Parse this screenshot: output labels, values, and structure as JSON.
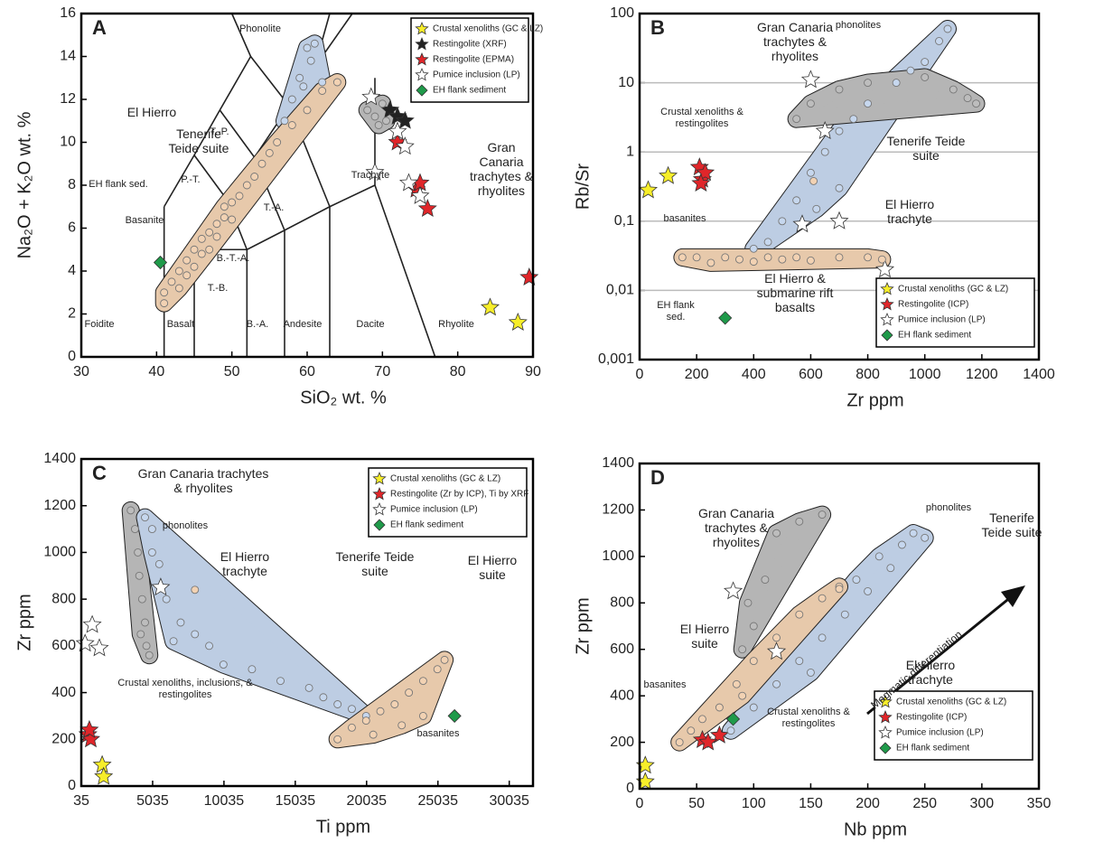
{
  "chart_data": [
    {
      "type": "scatter",
      "title": "A",
      "xlabel": "SiO₂ wt. %",
      "ylabel": "Na₂O + K₂O wt. %",
      "xlim": [
        30,
        90
      ],
      "xticks": [
        30,
        40,
        50,
        60,
        70,
        80,
        90
      ],
      "ylim": [
        0,
        16
      ],
      "yticks": [
        0,
        2,
        4,
        6,
        8,
        10,
        12,
        14,
        16
      ],
      "legend": "upper right",
      "series": [
        {
          "name": "Crustal xenoliths (GC & LZ)",
          "color": "#f7ee2a",
          "marker": "star",
          "x": [
            84.3,
            88
          ],
          "y": [
            2.3,
            1.6
          ]
        },
        {
          "name": "Restingolite (XRF)",
          "color": "#222222",
          "marker": "star",
          "x": [
            71,
            72,
            73
          ],
          "y": [
            11.5,
            11.2,
            11
          ]
        },
        {
          "name": "Restingolite (EPMA)",
          "color": "#e0262a",
          "marker": "star",
          "x": [
            72,
            74.5,
            75,
            76,
            89.5
          ],
          "y": [
            10,
            7.8,
            8.1,
            6.9,
            3.7
          ]
        },
        {
          "name": "Pumice inclusion (LP)",
          "color": "#ffffff",
          "marker": "star",
          "x": [
            68.5,
            69,
            72,
            73,
            73.5,
            75
          ],
          "y": [
            12.1,
            8.6,
            10.5,
            9.8,
            8.1,
            7.5
          ]
        },
        {
          "name": "EH flank sediment",
          "color": "#1f9a4a",
          "marker": "diamond",
          "x": [
            40.5
          ],
          "y": [
            4.4
          ]
        },
        {
          "name": "Tenerife Teide suite",
          "color": "#c6d7ee",
          "marker": "circle",
          "x": [
            57,
            58,
            59,
            59.5,
            60,
            60.5,
            61,
            62
          ],
          "y": [
            11,
            12,
            13,
            12.6,
            14.4,
            13.8,
            14.6,
            12.8
          ]
        },
        {
          "name": "El Hierro",
          "color": "#f2d2b3",
          "marker": "circle",
          "x": [
            41,
            41,
            42,
            43,
            43,
            44,
            44,
            45,
            45,
            46,
            46,
            47,
            47,
            48,
            48,
            49,
            49,
            50,
            50,
            51,
            52,
            53,
            54,
            55,
            56,
            58,
            60,
            62,
            64
          ],
          "y": [
            3,
            2.5,
            3.5,
            4,
            3.2,
            4.5,
            3.8,
            5,
            4.2,
            5.5,
            4.8,
            5.8,
            5,
            6.2,
            5.6,
            6.5,
            7,
            7.2,
            6.4,
            7.5,
            8,
            8.4,
            9,
            9.5,
            10,
            10.8,
            11.5,
            12.4,
            12.8
          ]
        },
        {
          "name": "Gran Canaria trachytes & rhyolites",
          "color": "#bdbdbd",
          "marker": "circle",
          "x": [
            68,
            69,
            70,
            69.5,
            70.5
          ],
          "y": [
            11.5,
            11.2,
            11.8,
            10.8,
            11
          ]
        }
      ],
      "annotations": [
        "Phonolite",
        "T.-P.",
        "P.-T.",
        "Basanite",
        "T.-A.",
        "B.-T.-A.",
        "T.-B.",
        "Trachyte",
        "Foidite",
        "Basalt",
        "B.-A.",
        "Andesite",
        "Dacite",
        "Rhyolite",
        "EH flank sed."
      ]
    },
    {
      "type": "scatter",
      "title": "B",
      "xlabel": "Zr ppm",
      "ylabel": "Rb/Sr",
      "xlim": [
        0,
        1400
      ],
      "xticks": [
        0,
        200,
        400,
        600,
        800,
        1000,
        1200,
        1400
      ],
      "ylim": [
        0.001,
        100
      ],
      "log_y": true,
      "grid": true,
      "yticks": [
        {
          "value": 0.001,
          "label": "0,001"
        },
        {
          "value": 0.01,
          "label": "0,01"
        },
        {
          "value": 0.1,
          "label": "0,1"
        },
        1,
        10,
        100
      ],
      "legend": "lower right",
      "series": [
        {
          "name": "Crustal xenoliths (GC & LZ)",
          "color": "#f7ee2a",
          "marker": "star",
          "x": [
            30,
            100
          ],
          "y": [
            0.28,
            0.45
          ]
        },
        {
          "name": "Restingolite (ICP)",
          "color": "#e0262a",
          "marker": "star",
          "x": [
            210,
            220,
            230,
            215
          ],
          "y": [
            0.6,
            0.4,
            0.5,
            0.35
          ]
        },
        {
          "name": "Pumice inclusion (LP)",
          "color": "#ffffff",
          "marker": "star",
          "x": [
            600,
            650,
            570,
            700,
            860
          ],
          "y": [
            11,
            2,
            0.09,
            0.1,
            0.02
          ]
        },
        {
          "name": "EH flank sediment",
          "color": "#1f9a4a",
          "marker": "diamond",
          "x": [
            300
          ],
          "y": [
            0.004
          ]
        },
        {
          "name": "Tenerife Teide suite",
          "color": "#c6d7ee",
          "marker": "circle",
          "x": [
            400,
            450,
            500,
            550,
            600,
            650,
            700,
            750,
            800,
            900,
            1000,
            1050,
            1080,
            950,
            700,
            620
          ],
          "y": [
            0.04,
            0.05,
            0.1,
            0.2,
            0.5,
            1,
            2,
            3,
            5,
            10,
            20,
            40,
            60,
            15,
            0.3,
            0.15
          ]
        },
        {
          "name": "Gran Canaria trachytes & rhyolites",
          "color": "#bdbdbd",
          "marker": "circle",
          "x": [
            550,
            600,
            700,
            800,
            1100,
            1150,
            1180,
            1000
          ],
          "y": [
            3,
            5,
            8,
            10,
            8,
            6,
            5,
            12
          ]
        },
        {
          "name": "El Hierro & submarine rift basalts",
          "color": "#f2d2b3",
          "marker": "circle",
          "x": [
            150,
            200,
            250,
            300,
            350,
            400,
            450,
            500,
            550,
            600,
            700,
            800,
            850
          ],
          "y": [
            0.03,
            0.03,
            0.025,
            0.03,
            0.028,
            0.026,
            0.03,
            0.028,
            0.03,
            0.027,
            0.03,
            0.03,
            0.028
          ]
        },
        {
          "name": "El Hierro trachyte",
          "color": "#f2d2b3",
          "marker": "circle",
          "x": [
            610
          ],
          "y": [
            0.38
          ]
        }
      ],
      "annotations": [
        "phonolites",
        "Crustal xenoliths & restingolites",
        "basanites",
        "EH flank sed."
      ]
    },
    {
      "type": "scatter",
      "title": "C",
      "xlabel": "Ti ppm",
      "ylabel": "Zr ppm",
      "xlim": [
        35,
        31700
      ],
      "xticks": [
        35,
        5035,
        10035,
        15035,
        20035,
        25035,
        30035
      ],
      "ylim": [
        0,
        1400
      ],
      "yticks": [
        0,
        200,
        400,
        600,
        800,
        1000,
        1200,
        1400
      ],
      "legend": "upper right",
      "series": [
        {
          "name": "Crustal xenoliths (GC & LZ)",
          "color": "#f7ee2a",
          "marker": "star",
          "x": [
            1500,
            1600
          ],
          "y": [
            90,
            40
          ]
        },
        {
          "name": "Restingolite (Zr by ICP), Ti by XRF",
          "color": "#e0262a",
          "marker": "star",
          "x": [
            500,
            700,
            600
          ],
          "y": [
            220,
            200,
            240
          ]
        },
        {
          "name": "Pumice inclusion (LP)",
          "color": "#ffffff",
          "marker": "star",
          "x": [
            300,
            800,
            1300,
            5600
          ],
          "y": [
            610,
            690,
            590,
            850
          ]
        },
        {
          "name": "EH flank sediment",
          "color": "#1f9a4a",
          "marker": "diamond",
          "x": [
            26200
          ],
          "y": [
            300
          ]
        },
        {
          "name": "Gran Canaria trachytes & rhyolites",
          "color": "#bdbdbd",
          "marker": "circle",
          "x": [
            3500,
            3800,
            4000,
            4100,
            4300,
            4500,
            4600,
            4800,
            4200
          ],
          "y": [
            1180,
            1100,
            1000,
            900,
            800,
            700,
            600,
            560,
            650
          ]
        },
        {
          "name": "Tenerife Teide suite",
          "color": "#c6d7ee",
          "marker": "circle",
          "x": [
            4500,
            5000,
            5000,
            5500,
            6000,
            7000,
            8000,
            9000,
            10000,
            12000,
            14000,
            16000,
            17000,
            18000,
            19000,
            20000,
            6500
          ],
          "y": [
            1150,
            1100,
            1000,
            950,
            800,
            700,
            650,
            600,
            520,
            500,
            450,
            420,
            380,
            350,
            330,
            300,
            620
          ]
        },
        {
          "name": "El Hierro suite",
          "color": "#f2d2b3",
          "marker": "circle",
          "x": [
            18000,
            19000,
            20000,
            21000,
            22000,
            23000,
            24000,
            25000,
            25500,
            20500,
            22500,
            24000
          ],
          "y": [
            200,
            250,
            280,
            320,
            350,
            400,
            450,
            500,
            540,
            220,
            260,
            300
          ]
        },
        {
          "name": "El Hierro trachyte",
          "color": "#f2d2b3",
          "marker": "circle",
          "x": [
            8000
          ],
          "y": [
            840
          ]
        }
      ],
      "annotations": [
        "phonolites",
        "Crustal xenoliths, inclusions, & restingolites",
        "basanites"
      ]
    },
    {
      "type": "scatter",
      "title": "D",
      "xlabel": "Nb ppm",
      "ylabel": "Zr ppm",
      "xlim": [
        0,
        350
      ],
      "xticks": [
        0,
        50,
        100,
        150,
        200,
        250,
        300,
        350
      ],
      "ylim": [
        0,
        1400
      ],
      "yticks": [
        0,
        200,
        400,
        600,
        800,
        1000,
        1200,
        1400
      ],
      "legend": "lower right",
      "series": [
        {
          "name": "Crustal xenoliths (GC & LZ)",
          "color": "#f7ee2a",
          "marker": "star",
          "x": [
            5,
            5
          ],
          "y": [
            100,
            30
          ]
        },
        {
          "name": "Restingolite (ICP)",
          "color": "#e0262a",
          "marker": "star",
          "x": [
            55,
            70,
            60
          ],
          "y": [
            210,
            230,
            200
          ]
        },
        {
          "name": "Pumice inclusion (LP)",
          "color": "#ffffff",
          "marker": "star",
          "x": [
            82,
            120
          ],
          "y": [
            850,
            590
          ]
        },
        {
          "name": "EH flank sediment",
          "color": "#1f9a4a",
          "marker": "diamond",
          "x": [
            82
          ],
          "y": [
            300
          ]
        },
        {
          "name": "Gran Canaria trachytes & rhyolites",
          "color": "#bdbdbd",
          "marker": "circle",
          "x": [
            90,
            100,
            110,
            120,
            140,
            160,
            95
          ],
          "y": [
            600,
            700,
            900,
            1100,
            1150,
            1180,
            800
          ]
        },
        {
          "name": "Tenerife Teide suite",
          "color": "#c6d7ee",
          "marker": "circle",
          "x": [
            80,
            100,
            120,
            140,
            160,
            180,
            200,
            220,
            230,
            240,
            250,
            190,
            210,
            150
          ],
          "y": [
            250,
            350,
            450,
            550,
            650,
            750,
            850,
            950,
            1050,
            1100,
            1080,
            900,
            1000,
            500
          ]
        },
        {
          "name": "El Hierro suite",
          "color": "#f2d2b3",
          "marker": "circle",
          "x": [
            35,
            45,
            55,
            70,
            85,
            100,
            120,
            140,
            160,
            175,
            90
          ],
          "y": [
            200,
            250,
            300,
            350,
            450,
            550,
            650,
            750,
            820,
            870,
            400
          ]
        },
        {
          "name": "El Hierro trachyte",
          "color": "#f2d2b3",
          "marker": "circle",
          "x": [
            175
          ],
          "y": [
            860
          ]
        }
      ],
      "annotations": [
        "phonolites",
        "basanites",
        "Crustal xenoliths & restingolites",
        "Magmatic differentiation"
      ]
    }
  ]
}
